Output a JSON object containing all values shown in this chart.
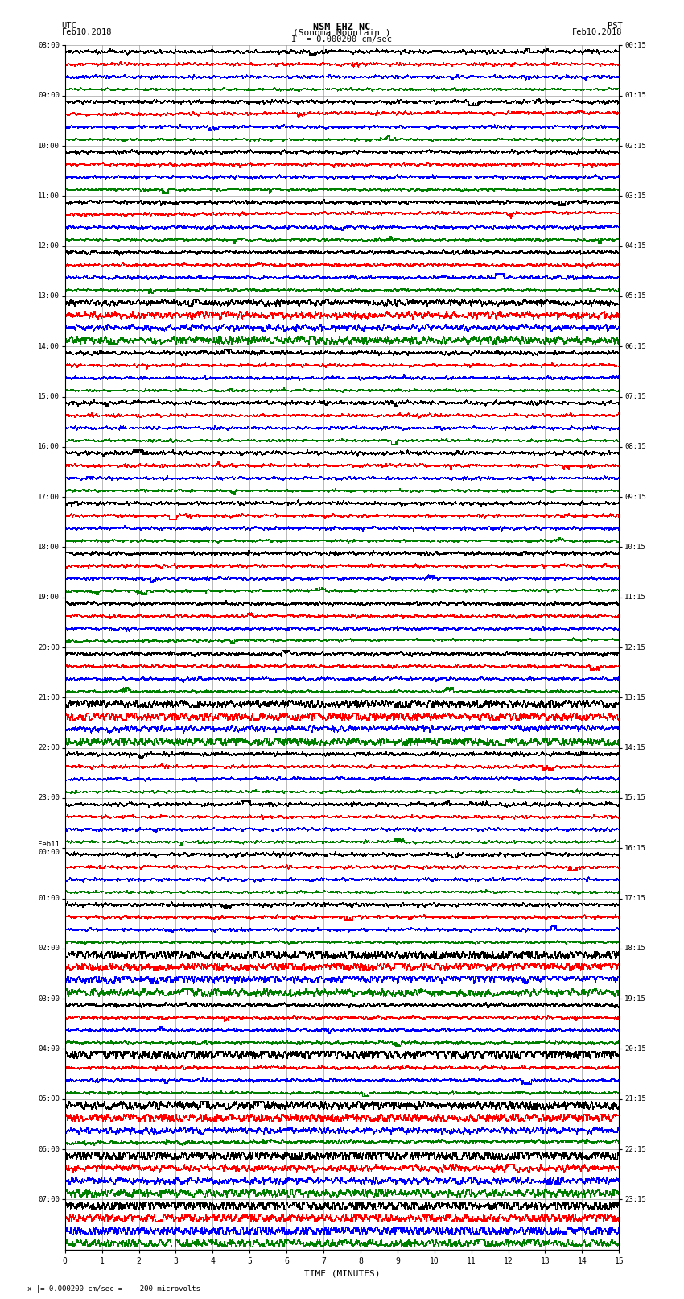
{
  "title_line1": "NSM EHZ NC",
  "title_line2": "(Sonoma Mountain )",
  "title_scale": "I  = 0.000200 cm/sec",
  "left_header_line1": "UTC",
  "left_header_line2": "Feb10,2018",
  "right_header_line1": "PST",
  "right_header_line2": "Feb10,2018",
  "footer_note": "x |= 0.000200 cm/sec =    200 microvolts",
  "xlabel": "TIME (MINUTES)",
  "left_times_labeled": [
    "08:00",
    "09:00",
    "10:00",
    "11:00",
    "12:00",
    "13:00",
    "14:00",
    "15:00",
    "16:00",
    "17:00",
    "18:00",
    "19:00",
    "20:00",
    "21:00",
    "22:00",
    "23:00",
    "Feb11\n00:00",
    "01:00",
    "02:00",
    "03:00",
    "04:00",
    "05:00",
    "06:00",
    "07:00"
  ],
  "right_times_labeled": [
    "00:15",
    "01:15",
    "02:15",
    "03:15",
    "04:15",
    "05:15",
    "06:15",
    "07:15",
    "08:15",
    "09:15",
    "10:15",
    "11:15",
    "12:15",
    "13:15",
    "14:15",
    "15:15",
    "16:15",
    "17:15",
    "18:15",
    "19:15",
    "20:15",
    "21:15",
    "22:15",
    "23:15"
  ],
  "n_hours": 24,
  "traces_per_hour": 4,
  "colors": [
    "black",
    "red",
    "blue",
    "green"
  ],
  "xmin": 0,
  "xmax": 15,
  "background_color": "white",
  "grid_color": "#888888",
  "grid_linewidth": 0.4,
  "trace_linewidth": 0.35,
  "seed": 42
}
